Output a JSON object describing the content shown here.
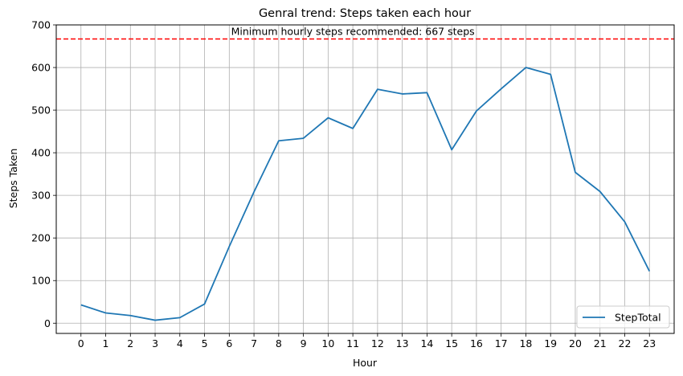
{
  "chart_data": {
    "type": "line",
    "title": "Genral trend: Steps taken each hour",
    "xlabel": "Hour",
    "ylabel": "Steps Taken",
    "x": [
      0,
      1,
      2,
      3,
      4,
      5,
      6,
      7,
      8,
      9,
      10,
      11,
      12,
      13,
      14,
      15,
      16,
      17,
      18,
      19,
      20,
      21,
      22,
      23
    ],
    "x_tick_labels": [
      "0",
      "1",
      "2",
      "3",
      "4",
      "5",
      "6",
      "7",
      "8",
      "9",
      "10",
      "11",
      "12",
      "13",
      "14",
      "15",
      "16",
      "17",
      "18",
      "19",
      "20",
      "21",
      "22",
      "23"
    ],
    "xlim": [
      -1.0,
      24.0
    ],
    "ylim": [
      -24,
      700
    ],
    "y_ticks": [
      0,
      100,
      200,
      300,
      400,
      500,
      600,
      700
    ],
    "y_tick_labels": [
      "0",
      "100",
      "200",
      "300",
      "400",
      "500",
      "600",
      "700"
    ],
    "series": [
      {
        "name": "StepTotal",
        "color": "#1f77b4",
        "values": [
          43,
          24,
          18,
          7,
          13,
          45,
          180,
          308,
          428,
          434,
          482,
          457,
          549,
          538,
          541,
          407,
          498,
          550,
          600,
          584,
          354,
          309,
          238,
          122
        ]
      }
    ],
    "reference_line": {
      "value": 667,
      "color": "#ff0000",
      "style": "dashed",
      "annotation": "Minimum hourly steps recommended: 667 steps"
    },
    "grid": true,
    "legend": {
      "position": "lower right",
      "entries": [
        "StepTotal"
      ]
    }
  }
}
